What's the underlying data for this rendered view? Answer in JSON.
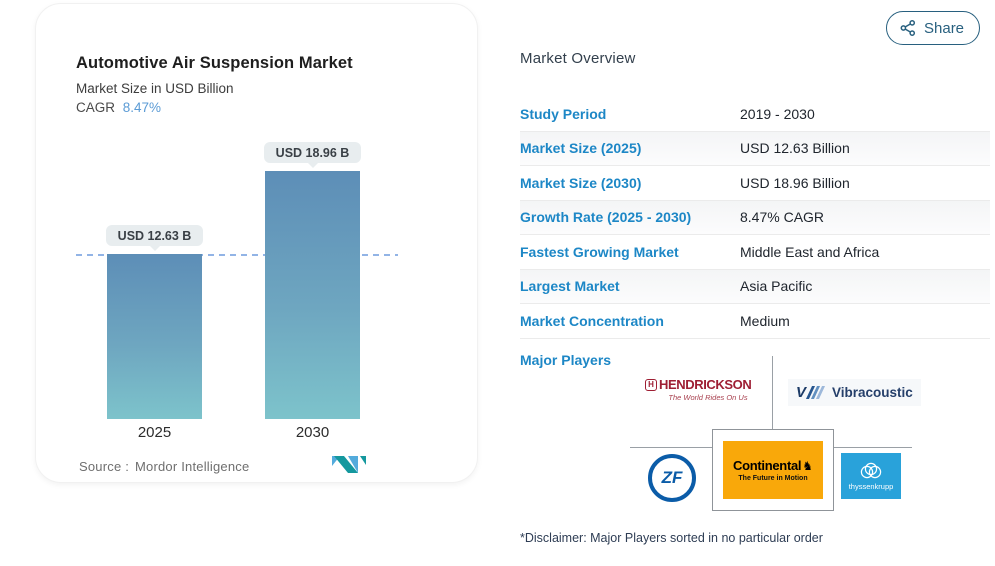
{
  "chart_card": {
    "title": "Automotive Air Suspension Market",
    "subtitle": "Market Size in USD Billion",
    "cagr_label": "CAGR",
    "cagr_value": "8.47%",
    "source_label": "Source :",
    "source_value": "Mordor Intelligence"
  },
  "chart_data": {
    "type": "bar",
    "title": "Automotive Air Suspension Market",
    "subtitle": "Market Size in USD Billion",
    "categories": [
      "2025",
      "2030"
    ],
    "values": [
      12.63,
      18.96
    ],
    "bar_labels": [
      "USD 12.63 B",
      "USD 18.96 B"
    ],
    "unit": "USD Billion",
    "cagr": "8.47%",
    "reference_line": {
      "style": "dashed",
      "at_value": 12.63
    },
    "ylim": [
      0,
      21
    ],
    "grid": false,
    "legend": false,
    "source": "Mordor Intelligence"
  },
  "share_button": {
    "label": "Share"
  },
  "overview": {
    "heading": "Market Overview",
    "rows": [
      {
        "label": "Study Period",
        "value": "2019 - 2030"
      },
      {
        "label": "Market Size (2025)",
        "value": "USD 12.63 Billion"
      },
      {
        "label": "Market Size (2030)",
        "value": "USD 18.96 Billion"
      },
      {
        "label": "Growth Rate (2025 - 2030)",
        "value": "8.47% CAGR"
      },
      {
        "label": "Fastest Growing Market",
        "value": "Middle East and Africa"
      },
      {
        "label": "Largest Market",
        "value": "Asia Pacific"
      },
      {
        "label": "Market Concentration",
        "value": "Medium"
      }
    ],
    "major_players_label": "Major Players",
    "players": {
      "hendrickson": {
        "mark": "H",
        "name": "HENDRICKSON",
        "tagline": "The World Rides On Us"
      },
      "vibracoustic": {
        "name": "Vibracoustic"
      },
      "zf": {
        "name": "ZF"
      },
      "continental": {
        "name": "Continental",
        "tagline": "The Future in Motion"
      },
      "thyssenkrupp": {
        "name": "thyssenkrupp"
      }
    },
    "disclaimer": "*Disclaimer: Major Players sorted in no particular order"
  },
  "icons": {
    "continental_horse": "♞"
  },
  "colors": {
    "accent_blue": "#1d87c6",
    "cagr_blue": "#5b9bd5",
    "share_blue": "#28607f",
    "bar_top": "#5d8eb7",
    "bar_bottom": "#7dc3cb",
    "dashed_line": "#92b4e6",
    "pill_bg": "#e8edef",
    "hendrickson_red": "#9e1e33",
    "vibracoustic_navy": "#253f6a",
    "zf_blue": "#0b5ca8",
    "continental_orange": "#f9a80a",
    "thyssenkrupp_blue": "#29a2da"
  }
}
